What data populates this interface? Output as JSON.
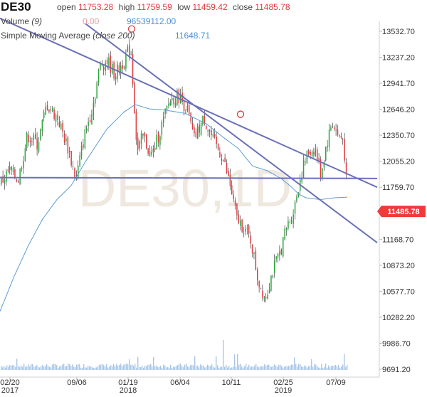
{
  "header": {
    "symbol": "DE30",
    "open_label": "open",
    "open_value": "11753.28",
    "high_label": "high",
    "high_value": "11759.59",
    "low_label": "low",
    "low_value": "11459.42",
    "close_label": "close",
    "close_value": "11485.78",
    "volume_label": "Volume",
    "volume_param": "(9)",
    "volume_change": "0.00",
    "volume_value": "96539112.00",
    "sma_label": "Simple Moving Average",
    "sma_param": "(close 200)",
    "sma_value": "11648.71"
  },
  "watermark": "DE30,1D",
  "colors": {
    "up": "#2aa53a",
    "down": "#e0393e",
    "sma": "#5b9bd5",
    "trendline": "#6b6fb8",
    "volume": "#a9c6e8",
    "price_badge": "#f13a3a",
    "watermark": "#efe8df"
  },
  "chart_data": {
    "type": "candlestick",
    "price_ticks": [
      "13532.70",
      "13237.20",
      "12941.70",
      "12646.20",
      "12350.70",
      "12055.20",
      "11759.70",
      "11168.70",
      "10873.20",
      "10577.70",
      "10282.20",
      "9986.70",
      "9691.20"
    ],
    "ylim": [
      9691.2,
      13532.7
    ],
    "x_ticks": [
      {
        "label": "02/20",
        "sub": "2017"
      },
      {
        "label": "09/06",
        "sub": ""
      },
      {
        "label": "01/19",
        "sub": "2018"
      },
      {
        "label": "06/04",
        "sub": ""
      },
      {
        "label": "10/11",
        "sub": ""
      },
      {
        "label": "02/25",
        "sub": "2019"
      },
      {
        "label": "07/09",
        "sub": ""
      }
    ],
    "last_price": "11485.78",
    "price_anchors": [
      [
        0,
        11800
      ],
      [
        12,
        11950
      ],
      [
        25,
        11850
      ],
      [
        38,
        12350
      ],
      [
        52,
        12250
      ],
      [
        65,
        12700
      ],
      [
        80,
        12550
      ],
      [
        95,
        12200
      ],
      [
        106,
        11850
      ],
      [
        118,
        12350
      ],
      [
        130,
        12700
      ],
      [
        140,
        13150
      ],
      [
        150,
        13200
      ],
      [
        160,
        13050
      ],
      [
        170,
        13150
      ],
      [
        183,
        13350
      ],
      [
        192,
        12150
      ],
      [
        200,
        12350
      ],
      [
        212,
        12100
      ],
      [
        222,
        12350
      ],
      [
        238,
        12750
      ],
      [
        250,
        12800
      ],
      [
        262,
        12650
      ],
      [
        272,
        12300
      ],
      [
        286,
        12550
      ],
      [
        298,
        12300
      ],
      [
        312,
        12100
      ],
      [
        322,
        11800
      ],
      [
        332,
        11400
      ],
      [
        342,
        11300
      ],
      [
        352,
        11150
      ],
      [
        362,
        10700
      ],
      [
        372,
        10500
      ],
      [
        382,
        10800
      ],
      [
        392,
        11000
      ],
      [
        402,
        11300
      ],
      [
        412,
        11500
      ],
      [
        422,
        11900
      ],
      [
        432,
        12150
      ],
      [
        442,
        12200
      ],
      [
        450,
        11900
      ],
      [
        458,
        12250
      ],
      [
        466,
        12500
      ],
      [
        474,
        12350
      ],
      [
        482,
        12300
      ],
      [
        488,
        11550
      ]
    ],
    "sma_anchors": [
      [
        0,
        10350
      ],
      [
        20,
        10750
      ],
      [
        40,
        11100
      ],
      [
        60,
        11400
      ],
      [
        80,
        11620
      ],
      [
        100,
        11780
      ],
      [
        120,
        12050
      ],
      [
        150,
        12420
      ],
      [
        175,
        12620
      ],
      [
        190,
        12700
      ],
      [
        210,
        12650
      ],
      [
        230,
        12640
      ],
      [
        260,
        12600
      ],
      [
        290,
        12480
      ],
      [
        315,
        12320
      ],
      [
        335,
        12200
      ],
      [
        355,
        12000
      ],
      [
        375,
        11950
      ],
      [
        395,
        11860
      ],
      [
        410,
        11760
      ],
      [
        420,
        11680
      ],
      [
        430,
        11640
      ],
      [
        450,
        11620
      ],
      [
        470,
        11640
      ],
      [
        488,
        11648
      ]
    ],
    "trendlines": [
      {
        "name": "upper",
        "x1": 0,
        "y1": 13680,
        "x2": 530,
        "y2": 11760
      },
      {
        "name": "lower",
        "x1": 120,
        "y1": 13620,
        "x2": 530,
        "y2": 11130
      },
      {
        "name": "horizontal",
        "x1": 0,
        "y1": 11870,
        "x2": 530,
        "y2": 11860
      }
    ],
    "markers": [
      {
        "x": 185,
        "y": 13560
      },
      {
        "x": 338,
        "y": 12590
      }
    ]
  }
}
